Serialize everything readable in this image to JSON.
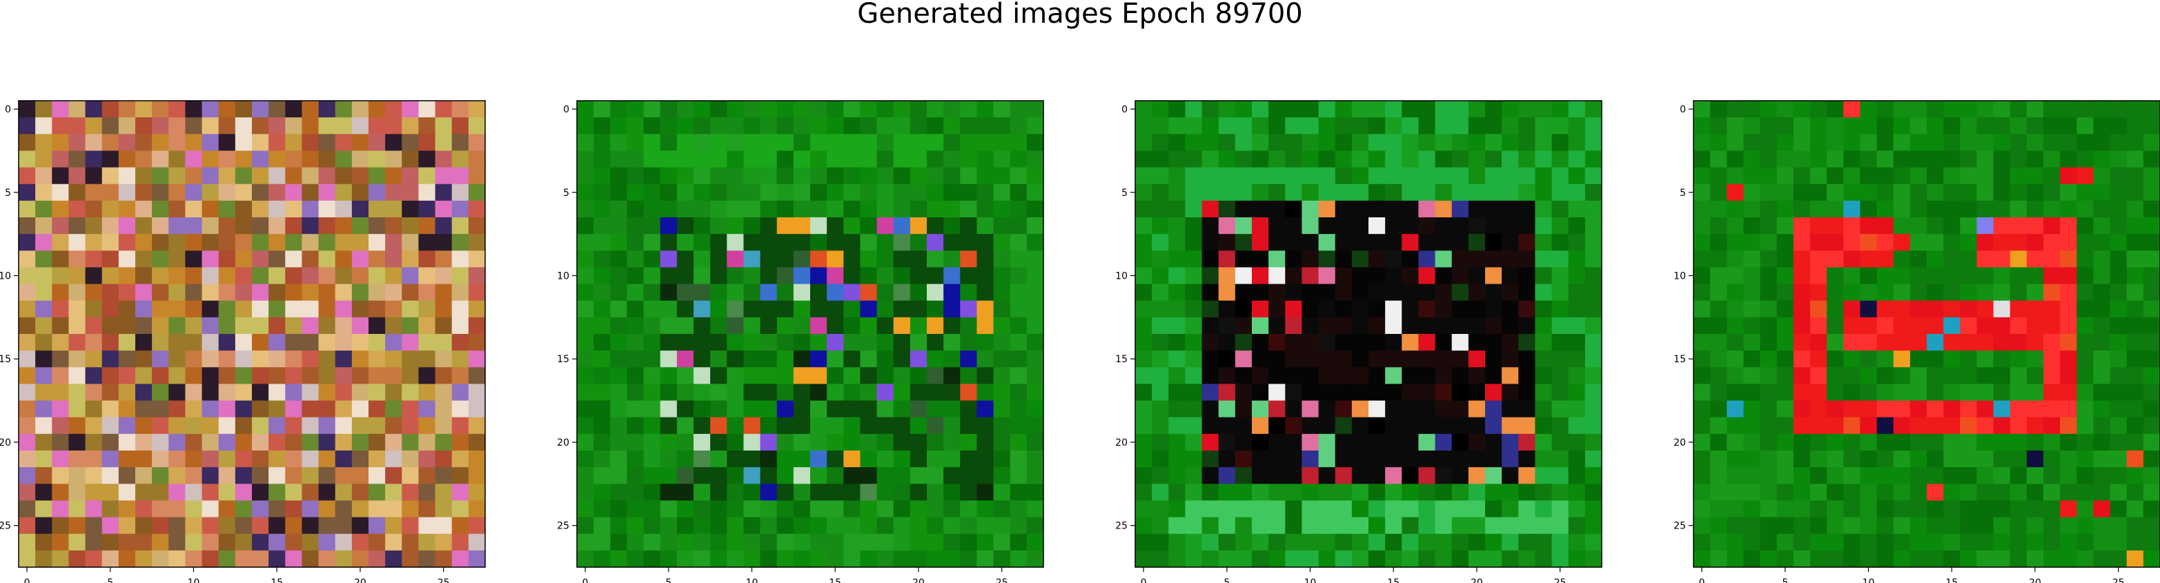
{
  "figure": {
    "title": "Generated images Epoch 89700"
  },
  "chart_data": [
    {
      "type": "heatmap",
      "image_kind": "rgb-pixel-grid",
      "grid_size": [
        28,
        28
      ],
      "xlim": [
        -0.5,
        27.5
      ],
      "ylim": [
        27.5,
        -0.5
      ],
      "xticks": [
        0,
        5,
        10,
        15,
        20,
        25
      ],
      "yticks": [
        0,
        5,
        10,
        15,
        20,
        25
      ],
      "xtick_labels": [
        "0",
        "5",
        "10",
        "15",
        "20",
        "25"
      ],
      "ytick_labels": [
        "0",
        "5",
        "10",
        "15",
        "20",
        "25"
      ],
      "description": "noisy multicolor image, dominated by orange, tan, olive and red pixels with scattered pink, purple, blue, black and white pixels",
      "palette": [
        "#c8862a",
        "#b8661f",
        "#c49a3a",
        "#a85a2a",
        "#d4a850",
        "#9a7a2a",
        "#c87a40",
        "#b04a30",
        "#d0b070",
        "#e6c07a",
        "#8a5a20",
        "#cc5a4a",
        "#b8a040",
        "#d88860",
        "#e0b08a",
        "#c06060",
        "#7a5a3a",
        "#2a1a2a",
        "#e070c0",
        "#9070c0",
        "#3a2a60",
        "#d0c0c0",
        "#f0e0d0",
        "#6a8a30",
        "#c8c060"
      ],
      "grid": false
    },
    {
      "type": "heatmap",
      "image_kind": "rgb-pixel-grid",
      "grid_size": [
        28,
        28
      ],
      "xlim": [
        -0.5,
        27.5
      ],
      "ylim": [
        27.5,
        -0.5
      ],
      "xticks": [
        0,
        5,
        10,
        15,
        20,
        25
      ],
      "yticks": [
        0,
        5,
        10,
        15,
        20,
        25
      ],
      "xtick_labels": [
        "0",
        "5",
        "10",
        "15",
        "20",
        "25"
      ],
      "ytick_labels": [
        "0",
        "5",
        "10",
        "15",
        "20",
        "25"
      ],
      "description": "green background with faint rectangular frame; center region has dark green, blue, teal, orange and purple speckles",
      "background_palette": [
        "#0a8a0a",
        "#168c16",
        "#0f7a0f",
        "#1a9a1a",
        "#087008",
        "#22a022",
        "#0c800c",
        "#13920e"
      ],
      "accent_palette": [
        "#0a2a0a",
        "#1010a0",
        "#3a70d0",
        "#40a0c0",
        "#f0a020",
        "#e05020",
        "#8050e0",
        "#d040a0",
        "#c0e0c0",
        "#306030",
        "#4a8a4a"
      ],
      "grid": false
    },
    {
      "type": "heatmap",
      "image_kind": "rgb-pixel-grid",
      "grid_size": [
        28,
        28
      ],
      "xlim": [
        -0.5,
        27.5
      ],
      "ylim": [
        27.5,
        -0.5
      ],
      "xticks": [
        0,
        5,
        10,
        15,
        20,
        25
      ],
      "yticks": [
        0,
        5,
        10,
        15,
        20,
        25
      ],
      "xtick_labels": [
        "0",
        "5",
        "10",
        "15",
        "20",
        "25"
      ],
      "ytick_labels": [
        "0",
        "5",
        "10",
        "15",
        "20",
        "25"
      ],
      "description": "green border framing a dark center region with red, pink, white and orange pixels; bright green stripe near the bottom",
      "background_palette": [
        "#0a8a0a",
        "#138f13",
        "#0f7a0f",
        "#1aa020",
        "#087008",
        "#20b040"
      ],
      "accent_palette": [
        "#000000",
        "#101010",
        "#1a0a0a",
        "#3a0a0a",
        "#e01020",
        "#c02030",
        "#f0f0f0",
        "#e070a0",
        "#f09040",
        "#303090",
        "#60d080",
        "#104010"
      ],
      "grid": false
    },
    {
      "type": "heatmap",
      "image_kind": "rgb-pixel-grid",
      "grid_size": [
        28,
        28
      ],
      "xlim": [
        -0.5,
        27.5
      ],
      "ylim": [
        27.5,
        -0.5
      ],
      "xticks": [
        0,
        5,
        10,
        15,
        20,
        25
      ],
      "yticks": [
        0,
        5,
        10,
        15,
        20,
        25
      ],
      "xtick_labels": [
        "0",
        "5",
        "10",
        "15",
        "20",
        "25"
      ],
      "ytick_labels": [
        "0",
        "5",
        "10",
        "15",
        "20",
        "25"
      ],
      "description": "green background with red rectangular shape: red outer frame from rows 7-19 and columns 6-22, inner red horizontal bar at rows 12-14",
      "background_palette": [
        "#0a8a0a",
        "#138f13",
        "#0f7a0f",
        "#1a9a1a",
        "#087008",
        "#0c7c0c"
      ],
      "accent_palette": [
        "#f01a1a",
        "#e8101a",
        "#ff3030",
        "#f05020",
        "#f0a020",
        "#8080f0",
        "#e0e0e0",
        "#101040",
        "#20a0c0"
      ],
      "grid": false
    }
  ]
}
